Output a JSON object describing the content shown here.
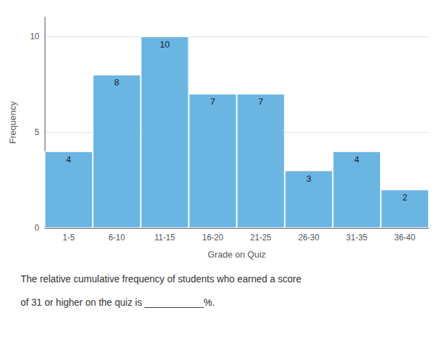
{
  "chart_data": {
    "type": "bar",
    "categories": [
      "1-5",
      "6-10",
      "11-15",
      "16-20",
      "21-25",
      "26-30",
      "31-35",
      "36-40"
    ],
    "values": [
      4,
      8,
      10,
      7,
      7,
      3,
      4,
      2
    ],
    "color": "#6bb5e3",
    "xlabel": "Grade on Quiz",
    "ylabel": "Frequency",
    "ylim": [
      0,
      11
    ],
    "yticks": [
      0,
      5,
      10
    ],
    "grid": true,
    "data_labels": true,
    "annotations": [
      "The relative cumulative frequency of students who earned a score",
      "of 31 or higher on the quiz is ___________%.  "
    ]
  }
}
